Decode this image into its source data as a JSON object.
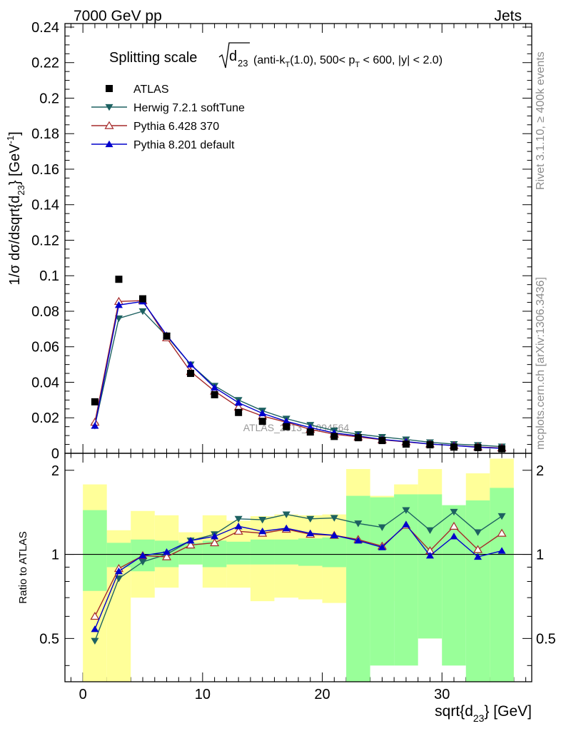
{
  "header": {
    "left": "7000 GeV pp",
    "right": "Jets"
  },
  "side": {
    "rivet": "Rivet 3.1.10, ≥ 400k events",
    "mcplots": "mcplots.cern.ch [arXiv:1306.3436]"
  },
  "watermark": "ATLAS_2013_I1094564",
  "chart_data": {
    "type": "line",
    "title": {
      "main": "Splitting scale",
      "sym_d": "d",
      "sym_sub": "23",
      "cond": [
        {
          "t": "(anti-k",
          "sub": false
        },
        {
          "t": "T",
          "sub": true
        },
        {
          "t": "(1.0), 500< p",
          "sub": false
        },
        {
          "t": "T",
          "sub": true
        },
        {
          "t": " < 600, |y| < 2.0)",
          "sub": false
        }
      ]
    },
    "xlabel": {
      "pre": "sqrt{d",
      "sub": "23",
      "post": "} [GeV]"
    },
    "ylabel": {
      "pre": "1/σ dσ/dsqrt{d",
      "sub": "23",
      "mid": "} [GeV",
      "sup": "-1",
      "post": "]"
    },
    "ratio_label": "Ratio to ATLAS",
    "xlim": [
      -1.5,
      37.5
    ],
    "ylim": [
      0,
      0.242
    ],
    "ratio_ylim": [
      0.35,
      2.3
    ],
    "x_ticks": [
      0,
      10,
      20,
      30
    ],
    "x_tick_labels": [
      "0",
      "10",
      "20",
      "30"
    ],
    "y_ticks": [
      0,
      0.02,
      0.04,
      0.06,
      0.08,
      0.1,
      0.12,
      0.14,
      0.16,
      0.18,
      0.2,
      0.22,
      0.24
    ],
    "y_tick_labels": [
      "0",
      "0.02",
      "0.04",
      "0.06",
      "0.08",
      "0.1",
      "0.12",
      "0.14",
      "0.16",
      "0.18",
      "0.2",
      "0.22",
      "0.24"
    ],
    "ratio_ticks": [
      0.5,
      1,
      2
    ],
    "ratio_tick_labels": [
      "0.5",
      "1",
      "2"
    ],
    "x": [
      1,
      3,
      5,
      7,
      9,
      11,
      13,
      15,
      17,
      19,
      21,
      23,
      25,
      27,
      29,
      31,
      33,
      35
    ],
    "x_edges": [
      0,
      2,
      4,
      6,
      8,
      10,
      12,
      14,
      16,
      18,
      20,
      22,
      24,
      26,
      28,
      30,
      32,
      34,
      36
    ],
    "data": {
      "name": "ATLAS",
      "values": [
        0.029,
        0.098,
        0.087,
        0.066,
        0.045,
        0.033,
        0.023,
        0.018,
        0.015,
        0.012,
        0.0095,
        0.0088,
        0.0072,
        0.0052,
        0.0048,
        0.0035,
        0.0032,
        0.0025
      ]
    },
    "band_inner": {
      "low": [
        0.74,
        0.9,
        0.87,
        0.9,
        0.92,
        0.9,
        0.92,
        0.92,
        0.92,
        0.91,
        0.9,
        0.29,
        0.4,
        0.4,
        0.5,
        0.4,
        0.32,
        0.35
      ],
      "high": [
        1.44,
        1.1,
        1.13,
        1.12,
        1.1,
        1.12,
        1.11,
        1.13,
        1.13,
        1.14,
        1.15,
        1.62,
        1.6,
        1.64,
        1.64,
        1.5,
        1.56,
        1.73
      ]
    },
    "band_outer": {
      "low": [
        0.35,
        0.35,
        0.7,
        0.76,
        0.92,
        0.76,
        0.76,
        0.68,
        0.7,
        0.69,
        0.67,
        0.47,
        0.78,
        0.68,
        0.5,
        0.84,
        0.54,
        0.35
      ],
      "high": [
        1.78,
        1.22,
        1.43,
        1.38,
        1.2,
        1.38,
        1.32,
        1.37,
        1.39,
        1.38,
        1.39,
        2.02,
        1.62,
        1.78,
        2.02,
        1.45,
        1.95,
        2.2
      ]
    },
    "series": [
      {
        "name": "Herwig 7.2.1 softTune",
        "color": "#1d6161",
        "marker": "triangle-down-filled",
        "values": [
          0.0155,
          0.076,
          0.08,
          0.066,
          0.05,
          0.038,
          0.03,
          0.024,
          0.0195,
          0.016,
          0.0128,
          0.0108,
          0.0092,
          0.0078,
          0.0062,
          0.0052,
          0.0046,
          0.0038
        ],
        "ratio": [
          0.49,
          0.82,
          0.94,
          1.0,
          1.12,
          1.18,
          1.34,
          1.33,
          1.39,
          1.34,
          1.35,
          1.29,
          1.25,
          1.44,
          1.22,
          1.42,
          1.2,
          1.37
        ]
      },
      {
        "name": "Pythia 6.428 370",
        "color": "#a52a2a",
        "marker": "triangle-up-open",
        "values": [
          0.0175,
          0.0855,
          0.086,
          0.065,
          0.046,
          0.035,
          0.026,
          0.021,
          0.0175,
          0.0135,
          0.0108,
          0.0092,
          0.0076,
          0.0064,
          0.0052,
          0.0044,
          0.0036,
          0.003
        ],
        "ratio": [
          0.6,
          0.89,
          0.99,
          0.98,
          1.08,
          1.1,
          1.21,
          1.19,
          1.23,
          1.18,
          1.17,
          1.13,
          1.07,
          1.27,
          1.03,
          1.26,
          1.04,
          1.19
        ]
      },
      {
        "name": "Pythia 8.201 default",
        "color": "#0000cc",
        "marker": "triangle-up-filled",
        "values": [
          0.0155,
          0.0835,
          0.0855,
          0.0665,
          0.05,
          0.037,
          0.0285,
          0.0225,
          0.018,
          0.0145,
          0.0115,
          0.0098,
          0.0078,
          0.0066,
          0.0052,
          0.0044,
          0.0034,
          0.0028
        ],
        "ratio": [
          0.54,
          0.87,
          0.99,
          1.02,
          1.12,
          1.16,
          1.26,
          1.21,
          1.24,
          1.19,
          1.17,
          1.12,
          1.06,
          1.28,
          0.99,
          1.16,
          0.98,
          1.03
        ]
      }
    ],
    "legend_position": "top-left"
  }
}
